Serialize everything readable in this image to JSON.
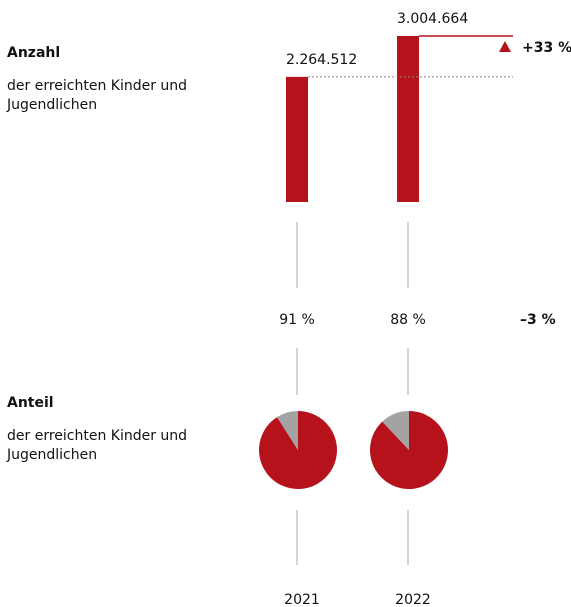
{
  "chart_data": [
    {
      "type": "bar",
      "title": "Anzahl",
      "subtitle": "der erreichten Kinder und Jugendlichen",
      "values": [
        2264512,
        3004664
      ],
      "value_labels": [
        "2.264.512",
        "3.004.664"
      ],
      "color": "#b5121b",
      "annotation": "+33 %"
    },
    {
      "type": "pie",
      "title": "Anteil",
      "subtitle": "der erreichten Kinder und Jugendlichen",
      "categories": [
        "2021",
        "2022"
      ],
      "values": [
        91,
        88
      ],
      "value_labels": [
        "91 %",
        "88 %"
      ],
      "color": "#b5121b",
      "rest_color": "#a3a3a3",
      "annotation": "–3 %"
    }
  ]
}
